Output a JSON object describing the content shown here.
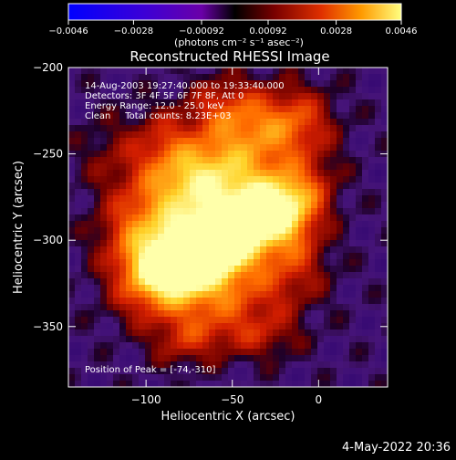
{
  "chart_data": {
    "type": "heatmap",
    "title": "Reconstructed RHESSI Image",
    "xlabel": "Heliocentric X (arcsec)",
    "ylabel": "Heliocentric Y (arcsec)",
    "xlim": [
      -145,
      40
    ],
    "ylim": [
      -385,
      -200
    ],
    "x_ticks": [
      {
        "value": -100,
        "label": "−100"
      },
      {
        "value": -50,
        "label": "−50"
      },
      {
        "value": 0,
        "label": "0"
      }
    ],
    "y_ticks": [
      {
        "value": -200,
        "label": "−200"
      },
      {
        "value": -250,
        "label": "−250"
      },
      {
        "value": -300,
        "label": "−300"
      },
      {
        "value": -350,
        "label": "−350"
      }
    ],
    "colorbar": {
      "range": [
        -0.0046,
        0.0046
      ],
      "ticks": [
        {
          "value": -0.0046,
          "label": "−0.0046"
        },
        {
          "value": -0.0028,
          "label": "−0.0028"
        },
        {
          "value": -0.00092,
          "label": "−0.00092"
        },
        {
          "value": 0.00092,
          "label": "0.00092"
        },
        {
          "value": 0.0028,
          "label": "0.0028"
        },
        {
          "value": 0.0046,
          "label": "0.0046"
        }
      ],
      "unit_label": "(photons cm⁻² s⁻¹ asec⁻²)"
    },
    "annotations": [
      "14-Aug-2003 19:27:40.000 to 19:33:40.000",
      "Detectors: 3F 4F 5F 6F 7F 8F, Att 0",
      "Energy Range: 12.0 - 25.0 keV",
      "Clean     Total counts: 8.23E+03"
    ],
    "peak_label": "Position of Peak = [-74,-310]",
    "peak": {
      "x": -74,
      "y": -310
    },
    "timestamp": "4-May-2022 20:36"
  }
}
